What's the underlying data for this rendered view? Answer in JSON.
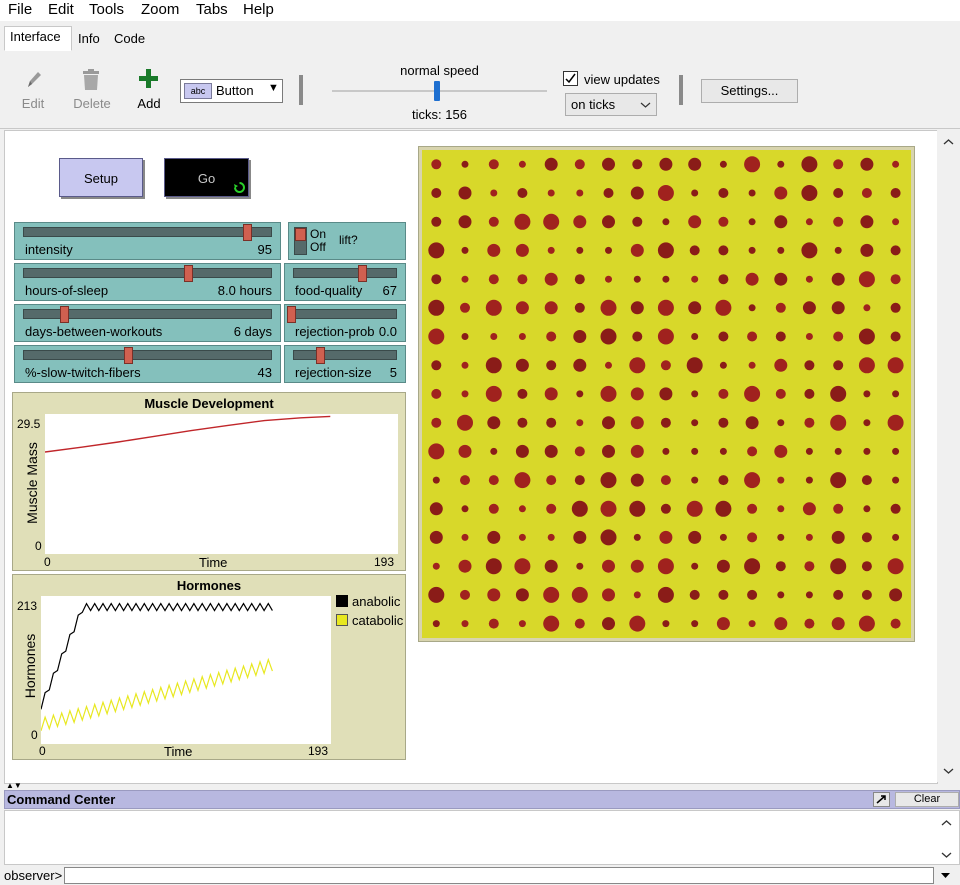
{
  "menu": [
    "File",
    "Edit",
    "Tools",
    "Zoom",
    "Tabs",
    "Help"
  ],
  "tabs": [
    "Interface",
    "Info",
    "Code"
  ],
  "toolbar": {
    "edit_label": "Edit",
    "delete_label": "Delete",
    "add_label": "Add",
    "widget_type": "Button",
    "speed_label": "normal speed",
    "ticks_label": "ticks: 156",
    "speed_fraction": 0.5,
    "view_updates_label": "view updates",
    "view_updates_checked": true,
    "update_mode": "on ticks",
    "settings_label": "Settings..."
  },
  "buttons": {
    "setup": "Setup",
    "go": "Go"
  },
  "sliders": [
    {
      "name": "intensity",
      "value": "95",
      "fraction": 0.95
    },
    {
      "name": "hours-of-sleep",
      "value": "8.0 hours",
      "fraction": 0.67
    },
    {
      "name": "days-between-workouts",
      "value": "6 days",
      "fraction": 0.17
    },
    {
      "name": "%-slow-twitch-fibers",
      "value": "43",
      "fraction": 0.43
    }
  ],
  "right_widgets": {
    "switch": {
      "on": "On",
      "off": "Off",
      "name": "lift?",
      "state": "on"
    },
    "food_quality": {
      "name": "food-quality",
      "value": "67",
      "fraction": 0.6
    },
    "rejection_prob": {
      "name": "rejection-prob",
      "value": "0.0",
      "fraction": 0.0
    },
    "rejection_size": {
      "name": "rejection-size",
      "value": "5",
      "fraction": 0.25
    }
  },
  "plots": {
    "muscle": {
      "title": "Muscle Development",
      "ylabel": "Muscle Mass",
      "xlabel": "Time",
      "ymax": "29.5",
      "ymin": "0",
      "xmin": "0",
      "xmax": "193",
      "color": "#c0262a"
    },
    "hormones": {
      "title": "Hormones",
      "ylabel": "Hormones",
      "xlabel": "Time",
      "ymax": "213",
      "ymin": "0",
      "xmin": "0",
      "xmax": "193",
      "legend": [
        {
          "name": "anabolic",
          "color": "#000000"
        },
        {
          "name": "catabolic",
          "color": "#e8e820"
        }
      ]
    }
  },
  "world": {
    "background": "#d8d82a",
    "patch_color": "#a0221e",
    "cols": 17,
    "rows": 17
  },
  "command_center": {
    "title": "Command Center",
    "clear_label": "Clear",
    "prompt": "observer>"
  },
  "chart_data": [
    {
      "type": "line",
      "title": "Muscle Development",
      "xlabel": "Time",
      "ylabel": "Muscle Mass",
      "xlim": [
        0,
        193
      ],
      "ylim": [
        0,
        29.5
      ],
      "series": [
        {
          "values_x": [
            0,
            20,
            40,
            60,
            80,
            100,
            120,
            140,
            156
          ],
          "values_y": [
            21.5,
            22.5,
            23.6,
            24.8,
            26.0,
            27.1,
            28.1,
            28.7,
            29.0
          ],
          "color": "#c0262a"
        }
      ]
    },
    {
      "type": "line",
      "title": "Hormones",
      "xlabel": "Time",
      "ylabel": "Hormones",
      "xlim": [
        0,
        193
      ],
      "ylim": [
        0,
        213
      ],
      "series": [
        {
          "name": "anabolic",
          "color": "#000000",
          "start": 55,
          "plateau": 197,
          "rise_end": 28,
          "amplitude": 10,
          "period": 5.5
        },
        {
          "name": "catabolic",
          "color": "#e8e820",
          "start": 28,
          "end": 115,
          "amplitude": 18,
          "period": 5.5
        }
      ]
    }
  ]
}
